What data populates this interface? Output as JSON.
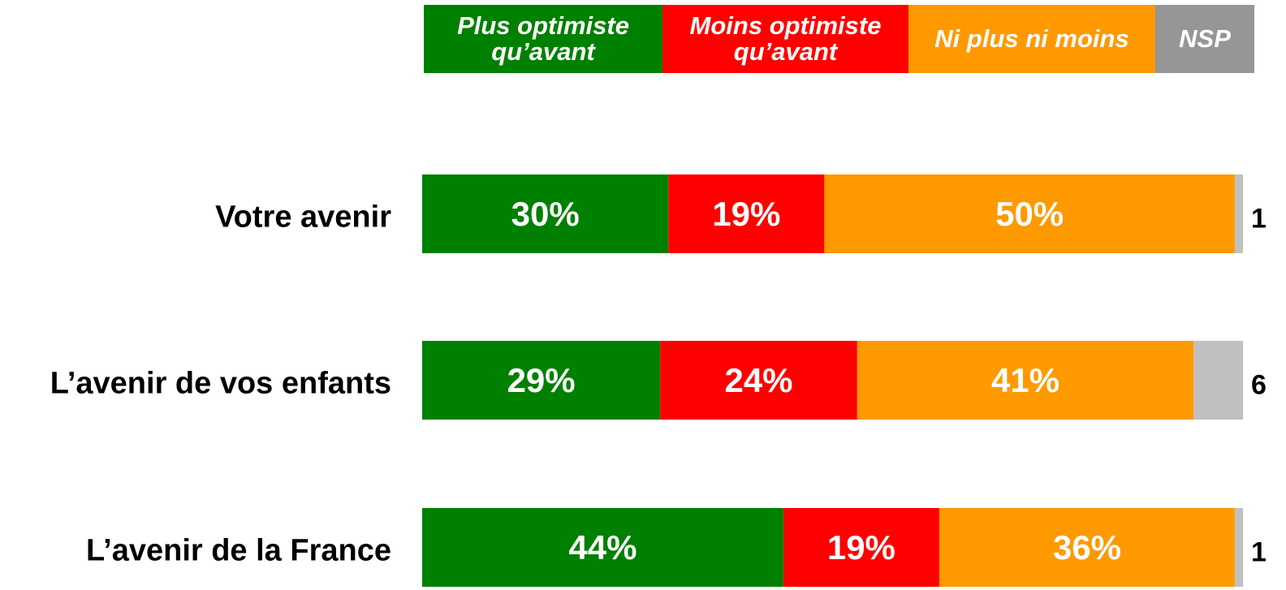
{
  "chart_data": {
    "type": "stacked-bar-horizontal",
    "categories": [
      "Votre avenir",
      "L’avenir de vos enfants",
      "L’avenir de la France"
    ],
    "series": [
      {
        "name": "Plus optimiste qu’avant",
        "color": "#008000",
        "values": [
          30,
          29,
          44
        ],
        "value_labels": [
          "30%",
          "29%",
          "44%"
        ]
      },
      {
        "name": "Moins optimiste qu’avant",
        "color": "#ff0000",
        "values": [
          19,
          24,
          19
        ],
        "value_labels": [
          "19%",
          "24%",
          "19%"
        ]
      },
      {
        "name": "Ni plus ni moins",
        "color": "#ff9900",
        "values": [
          50,
          41,
          36
        ],
        "value_labels": [
          "50%",
          "41%",
          "36%"
        ]
      },
      {
        "name": "NSP",
        "color": "#c0c0c0",
        "values": [
          1,
          6,
          1
        ]
      }
    ]
  }
}
